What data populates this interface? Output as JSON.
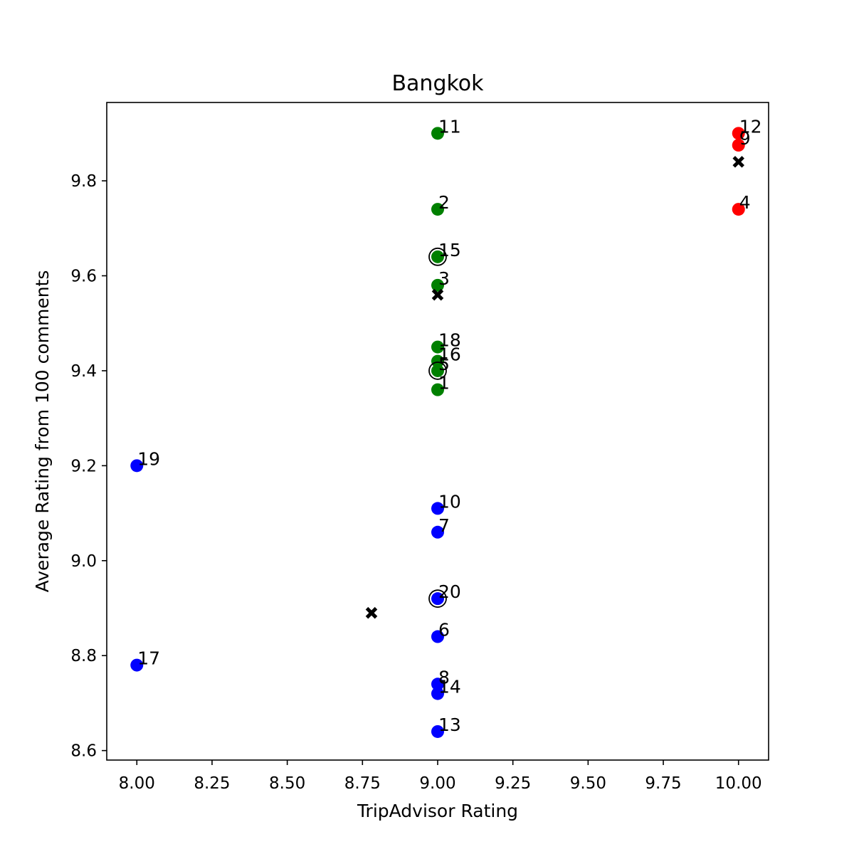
{
  "chart_data": {
    "type": "scatter",
    "title": "Bangkok",
    "xlabel": "TripAdvisor Rating",
    "ylabel": "Average Rating from 100 comments",
    "xlim": [
      7.9,
      10.1
    ],
    "ylim": [
      8.58,
      9.965
    ],
    "xticks": [
      "8.00",
      "8.25",
      "8.50",
      "8.75",
      "9.00",
      "9.25",
      "9.50",
      "9.75",
      "10.00"
    ],
    "yticks": [
      "8.6",
      "8.8",
      "9.0",
      "9.2",
      "9.4",
      "9.6",
      "9.8"
    ],
    "grid": false,
    "colors": {
      "green": "#008000",
      "red": "#ff0000",
      "blue": "#0000ff",
      "centroid": "#000000"
    },
    "points": [
      {
        "label": "1",
        "x": 9.0,
        "y": 9.36,
        "cluster": "green"
      },
      {
        "label": "2",
        "x": 9.0,
        "y": 9.74,
        "cluster": "green"
      },
      {
        "label": "3",
        "x": 9.0,
        "y": 9.58,
        "cluster": "green"
      },
      {
        "label": "4",
        "x": 10.0,
        "y": 9.74,
        "cluster": "red"
      },
      {
        "label": "5",
        "x": 9.0,
        "y": 9.4,
        "cluster": "green"
      },
      {
        "label": "6",
        "x": 9.0,
        "y": 8.84,
        "cluster": "blue"
      },
      {
        "label": "7",
        "x": 9.0,
        "y": 9.06,
        "cluster": "blue"
      },
      {
        "label": "8",
        "x": 9.0,
        "y": 8.74,
        "cluster": "blue"
      },
      {
        "label": "9",
        "x": 10.0,
        "y": 9.875,
        "cluster": "red"
      },
      {
        "label": "10",
        "x": 9.0,
        "y": 9.11,
        "cluster": "blue"
      },
      {
        "label": "11",
        "x": 9.0,
        "y": 9.9,
        "cluster": "green"
      },
      {
        "label": "12",
        "x": 10.0,
        "y": 9.9,
        "cluster": "red"
      },
      {
        "label": "13",
        "x": 9.0,
        "y": 8.64,
        "cluster": "blue"
      },
      {
        "label": "14",
        "x": 9.0,
        "y": 8.72,
        "cluster": "blue"
      },
      {
        "label": "15",
        "x": 9.0,
        "y": 9.64,
        "cluster": "green"
      },
      {
        "label": "16",
        "x": 9.0,
        "y": 9.42,
        "cluster": "green"
      },
      {
        "label": "17",
        "x": 8.0,
        "y": 8.78,
        "cluster": "blue"
      },
      {
        "label": "18",
        "x": 9.0,
        "y": 9.45,
        "cluster": "green"
      },
      {
        "label": "19",
        "x": 8.0,
        "y": 9.2,
        "cluster": "blue"
      },
      {
        "label": "20",
        "x": 9.0,
        "y": 8.92,
        "cluster": "blue"
      }
    ],
    "centroids": [
      {
        "x": 10.0,
        "y": 9.84
      },
      {
        "x": 9.0,
        "y": 9.56
      },
      {
        "x": 8.78,
        "y": 8.89
      }
    ],
    "highlighted": [
      {
        "x": 9.0,
        "y": 9.64
      },
      {
        "x": 9.0,
        "y": 9.4
      },
      {
        "x": 9.0,
        "y": 8.92
      }
    ]
  }
}
